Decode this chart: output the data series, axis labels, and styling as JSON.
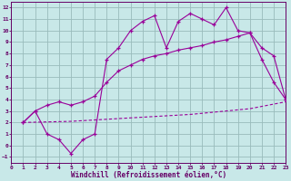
{
  "bg_color": "#c8e8e8",
  "grid_color": "#99bbbb",
  "line_color": "#990099",
  "xlim": [
    0,
    23
  ],
  "ylim": [
    -1.5,
    12.5
  ],
  "xticks": [
    0,
    1,
    2,
    3,
    4,
    5,
    6,
    7,
    8,
    9,
    10,
    11,
    12,
    13,
    14,
    15,
    16,
    17,
    18,
    19,
    20,
    21,
    22,
    23
  ],
  "yticks": [
    -1,
    0,
    1,
    2,
    3,
    4,
    5,
    6,
    7,
    8,
    9,
    10,
    11,
    12
  ],
  "xlabel": "Windchill (Refroidissement éolien,°C)",
  "line1_x": [
    1,
    2,
    3,
    4,
    5,
    6,
    7,
    8,
    9,
    10,
    11,
    12,
    13,
    14,
    15,
    16,
    17,
    18,
    19,
    20,
    21,
    22,
    23
  ],
  "line1_y": [
    2.0,
    3.0,
    1.0,
    0.5,
    -0.7,
    0.5,
    1.0,
    7.5,
    8.5,
    10.0,
    10.8,
    11.3,
    8.5,
    10.8,
    11.5,
    11.0,
    10.5,
    12.0,
    10.0,
    9.8,
    7.5,
    5.5,
    4.0
  ],
  "line2_x": [
    1,
    2,
    3,
    4,
    5,
    6,
    7,
    8,
    9,
    10,
    11,
    12,
    13,
    14,
    15,
    16,
    17,
    18,
    19,
    20,
    21,
    22,
    23
  ],
  "line2_y": [
    2.0,
    3.0,
    3.5,
    3.8,
    3.5,
    3.8,
    4.3,
    5.5,
    6.5,
    7.0,
    7.5,
    7.8,
    8.0,
    8.3,
    8.5,
    8.7,
    9.0,
    9.2,
    9.5,
    9.8,
    8.5,
    7.8,
    4.0
  ],
  "line3_x": [
    1,
    5,
    10,
    15,
    20,
    23
  ],
  "line3_y": [
    2.0,
    2.1,
    2.4,
    2.7,
    3.2,
    3.8
  ]
}
